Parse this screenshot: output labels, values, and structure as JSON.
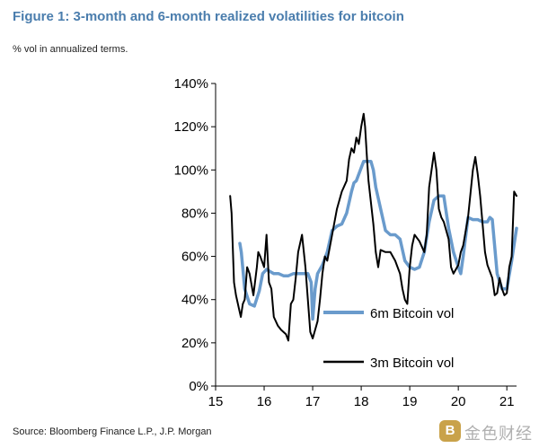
{
  "figure": {
    "title": "Figure 1: 3-month and 6-month realized volatilities for bitcoin",
    "subtitle": "% vol in annualized terms.",
    "source": "Source: Bloomberg Finance L.P., J.P. Morgan"
  },
  "watermark": {
    "badge": "B",
    "text": "金色财经"
  },
  "chart_data": {
    "type": "line",
    "title": "Figure 1: 3-month and 6-month realized volatilities for bitcoin",
    "ylabel": "% vol in annualized terms.",
    "xlabel": "",
    "xlim": [
      15,
      21.2
    ],
    "ylim": [
      0,
      140
    ],
    "x_ticks": [
      15,
      16,
      17,
      18,
      19,
      20,
      21
    ],
    "x_tick_labels": [
      "15",
      "16",
      "17",
      "18",
      "19",
      "20",
      "21"
    ],
    "y_ticks": [
      0,
      20,
      40,
      60,
      80,
      100,
      120,
      140
    ],
    "y_tick_labels": [
      "0%",
      "20%",
      "40%",
      "60%",
      "80%",
      "100%",
      "120%",
      "140%"
    ],
    "grid": false,
    "colors": {
      "vol6m": "#6a9bcc",
      "vol3m": "#000000"
    },
    "series": [
      {
        "name": "6m Bitcoin vol",
        "color": "#6a9bcc",
        "x": [
          15.5,
          15.53,
          15.6,
          15.7,
          15.8,
          15.9,
          15.97,
          16.05,
          16.12,
          16.2,
          16.3,
          16.4,
          16.5,
          16.6,
          16.7,
          16.8,
          16.9,
          16.97,
          17.0,
          17.05,
          17.1,
          17.2,
          17.3,
          17.4,
          17.5,
          17.6,
          17.7,
          17.8,
          17.85,
          17.9,
          18.0,
          18.05,
          18.1,
          18.2,
          18.25,
          18.3,
          18.4,
          18.5,
          18.6,
          18.7,
          18.8,
          18.9,
          19.0,
          19.1,
          19.2,
          19.3,
          19.4,
          19.5,
          19.6,
          19.7,
          19.8,
          19.9,
          20.0,
          20.05,
          20.1,
          20.2,
          20.3,
          20.4,
          20.5,
          20.6,
          20.65,
          20.7,
          20.8,
          20.9,
          21.0,
          21.1,
          21.2
        ],
        "values": [
          66,
          62,
          45,
          38,
          37,
          44,
          52,
          54,
          53,
          52,
          52,
          51,
          51,
          52,
          52,
          52,
          52,
          48,
          31,
          45,
          52,
          56,
          62,
          72,
          74,
          75,
          80,
          90,
          94,
          95,
          101,
          104,
          104,
          104,
          100,
          92,
          82,
          72,
          70,
          70,
          68,
          58,
          55,
          54,
          55,
          62,
          76,
          86,
          88,
          88,
          73,
          62,
          55,
          52,
          60,
          78,
          77,
          77,
          76,
          76,
          78,
          77,
          52,
          45,
          45,
          58,
          73
        ]
      },
      {
        "name": "3m Bitcoin vol",
        "color": "#000000",
        "x": [
          15.3,
          15.33,
          15.38,
          15.42,
          15.48,
          15.52,
          15.56,
          15.6,
          15.65,
          15.7,
          15.78,
          15.85,
          15.88,
          15.92,
          16.0,
          16.05,
          16.1,
          16.15,
          16.2,
          16.28,
          16.35,
          16.45,
          16.5,
          16.55,
          16.6,
          16.65,
          16.7,
          16.78,
          16.85,
          16.9,
          16.95,
          17.0,
          17.05,
          17.1,
          17.15,
          17.2,
          17.25,
          17.3,
          17.4,
          17.5,
          17.6,
          17.7,
          17.75,
          17.8,
          17.85,
          17.9,
          17.95,
          18.0,
          18.05,
          18.08,
          18.12,
          18.15,
          18.2,
          18.25,
          18.3,
          18.35,
          18.4,
          18.5,
          18.6,
          18.7,
          18.75,
          18.8,
          18.85,
          18.9,
          18.95,
          19.0,
          19.05,
          19.1,
          19.2,
          19.3,
          19.35,
          19.4,
          19.45,
          19.5,
          19.55,
          19.6,
          19.65,
          19.7,
          19.8,
          19.85,
          19.9,
          20.0,
          20.05,
          20.1,
          20.2,
          20.3,
          20.35,
          20.4,
          20.45,
          20.5,
          20.55,
          20.6,
          20.65,
          20.7,
          20.75,
          20.8,
          20.85,
          20.9,
          20.95,
          21.0,
          21.05,
          21.1,
          21.15,
          21.2
        ],
        "values": [
          88,
          80,
          48,
          42,
          36,
          32,
          38,
          40,
          55,
          52,
          42,
          55,
          62,
          60,
          55,
          70,
          48,
          45,
          32,
          28,
          26,
          24,
          21,
          38,
          40,
          50,
          62,
          70,
          55,
          40,
          25,
          22,
          26,
          30,
          40,
          52,
          60,
          58,
          70,
          82,
          90,
          95,
          105,
          110,
          108,
          115,
          112,
          120,
          126,
          120,
          105,
          95,
          85,
          75,
          62,
          55,
          63,
          62,
          62,
          58,
          55,
          52,
          45,
          40,
          38,
          55,
          65,
          70,
          67,
          62,
          70,
          92,
          100,
          108,
          100,
          82,
          78,
          76,
          68,
          55,
          52,
          56,
          62,
          65,
          78,
          100,
          106,
          98,
          88,
          75,
          62,
          56,
          53,
          50,
          42,
          43,
          50,
          45,
          42,
          43,
          55,
          60,
          90,
          88
        ]
      }
    ]
  }
}
